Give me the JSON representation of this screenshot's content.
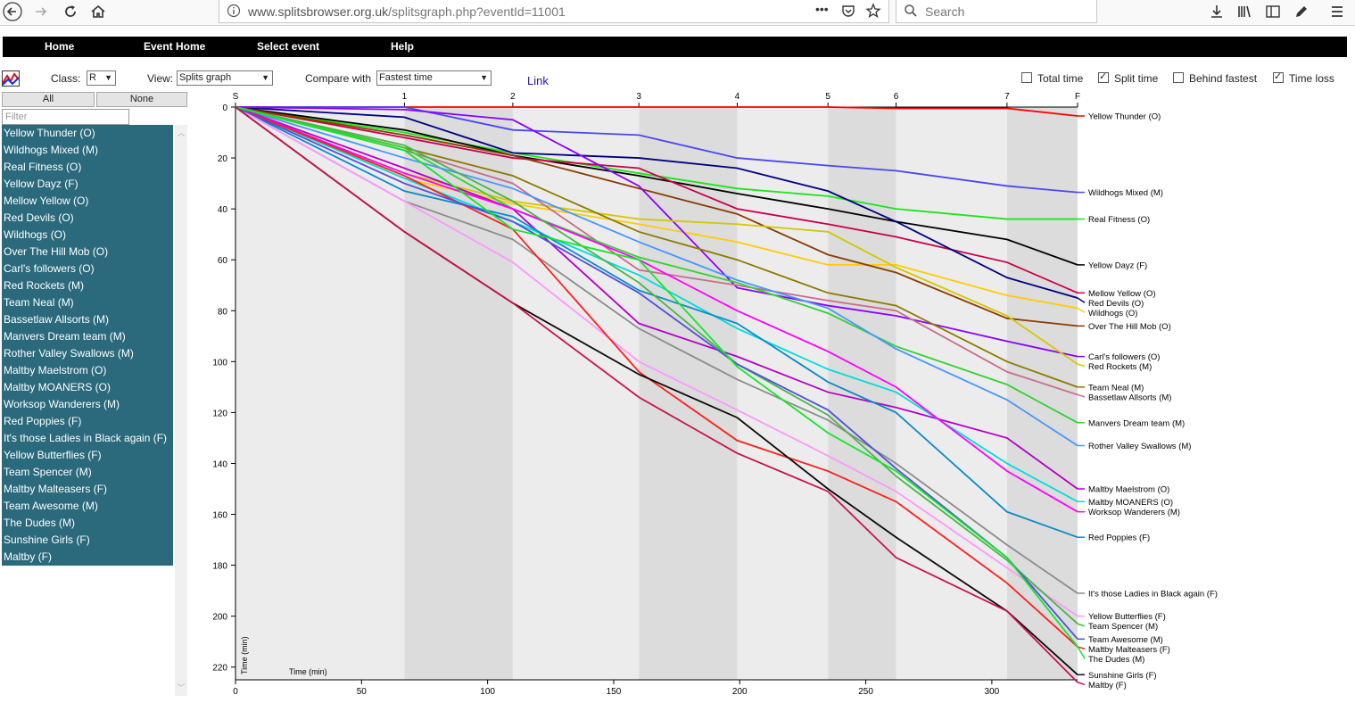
{
  "browser": {
    "url_main": "www.splitsbrowser.org.uk",
    "url_rest": "/splitsgraph.php?eventId=11001",
    "search_placeholder": "Search",
    "menu_dots": "•••"
  },
  "nav": {
    "home": "Home",
    "event_home": "Event Home",
    "select_event": "Select event",
    "help": "Help"
  },
  "toolbar": {
    "class_label": "Class:",
    "class_value": "R",
    "view_label": "View:",
    "view_value": "Splits graph",
    "compare_label": "Compare with",
    "compare_value": "Fastest time",
    "link_label": "Link",
    "total_time_label": "Total time",
    "total_time_checked": false,
    "split_time_label": "Split time",
    "split_time_checked": true,
    "behind_fastest_label": "Behind fastest",
    "behind_fastest_checked": false,
    "time_loss_label": "Time loss",
    "time_loss_checked": true
  },
  "sidebar": {
    "all_label": "All",
    "none_label": "None",
    "filter_placeholder": "Filter",
    "teams": [
      "Yellow Thunder (O)",
      "Wildhogs Mixed (M)",
      "Real Fitness (O)",
      "Yellow Dayz (F)",
      "Mellow Yellow (O)",
      "Red Devils (O)",
      "Wildhogs (O)",
      "Over The Hill Mob (O)",
      "Carl's followers (O)",
      "Red Rockets (M)",
      "Team Neal (M)",
      "Bassetlaw Allsorts (M)",
      "Manvers Dream team (M)",
      "Rother Valley Swallows (M)",
      "Maltby Maelstrom (O)",
      "Maltby MOANERS (O)",
      "Worksop Wanderers (M)",
      "Red Poppies (F)",
      "It's those Ladies in Black again (F)",
      "Yellow Butterflies (F)",
      "Team Spencer (M)",
      "Maltby Malteasers (F)",
      "Team Awesome (M)",
      "The Dudes (M)",
      "Sunshine Girls (F)",
      "Maltby (F)"
    ]
  },
  "chart_data": {
    "type": "line",
    "xlabel": "Time (min)",
    "ylabel": "Time (min)",
    "xlim": [
      0,
      334
    ],
    "ylim": [
      0,
      225
    ],
    "y_inverted": true,
    "x_ticks": [
      0,
      50,
      100,
      150,
      200,
      250,
      300
    ],
    "y_ticks": [
      0,
      20,
      40,
      60,
      80,
      100,
      120,
      140,
      160,
      180,
      200,
      220
    ],
    "controls": [
      {
        "label": "S",
        "x": 0
      },
      {
        "label": "1",
        "x": 67
      },
      {
        "label": "2",
        "x": 110
      },
      {
        "label": "3",
        "x": 160
      },
      {
        "label": "4",
        "x": 199
      },
      {
        "label": "5",
        "x": 235
      },
      {
        "label": "6",
        "x": 262
      },
      {
        "label": "7",
        "x": 306
      },
      {
        "label": "F",
        "x": 334
      }
    ],
    "series": [
      {
        "name": "Yellow Thunder (O)",
        "color": "#ff0000",
        "values": [
          0,
          0,
          0,
          0,
          0,
          0,
          0.5,
          0.5,
          3.5
        ]
      },
      {
        "name": "Wildhogs Mixed (M)",
        "color": "#4848ee",
        "values": [
          0,
          0,
          9,
          11,
          20,
          23,
          25,
          31,
          33.5
        ]
      },
      {
        "name": "Real Fitness (O)",
        "color": "#19e619",
        "values": [
          0,
          10,
          18,
          26,
          32,
          35,
          40,
          44,
          44
        ]
      },
      {
        "name": "Yellow Dayz (F)",
        "color": "#000000",
        "values": [
          0,
          9,
          19,
          27,
          34,
          40,
          45,
          52,
          62
        ]
      },
      {
        "name": "Mellow Yellow (O)",
        "color": "#c8004b",
        "values": [
          0,
          12,
          20,
          24,
          40,
          46,
          51,
          61,
          73
        ]
      },
      {
        "name": "Red Devils (O)",
        "color": "#000080",
        "values": [
          0,
          4,
          18,
          20,
          24,
          33,
          45,
          67,
          75
        ]
      },
      {
        "name": "Wildhogs (O)",
        "color": "#ffcc00",
        "values": [
          0,
          28,
          38,
          46,
          53,
          62,
          62,
          74,
          79
        ]
      },
      {
        "name": "Over The Hill Mob (O)",
        "color": "#8b3c00",
        "values": [
          0,
          11,
          19,
          32,
          42,
          58,
          65,
          83,
          86
        ]
      },
      {
        "name": "Carl's followers (O)",
        "color": "#8c00ff",
        "values": [
          0,
          1,
          5,
          31,
          71,
          78,
          82,
          92,
          98
        ]
      },
      {
        "name": "Red Rockets (M)",
        "color": "#d2c800",
        "values": [
          0,
          26,
          37,
          44,
          46,
          49,
          63,
          82,
          101
        ]
      },
      {
        "name": "Team Neal (M)",
        "color": "#8b7b00",
        "values": [
          0,
          16,
          27,
          49,
          60,
          73,
          78,
          100,
          110
        ]
      },
      {
        "name": "Bassetlaw Allsorts (M)",
        "color": "#c86c8c",
        "values": [
          0,
          17,
          30,
          64,
          70,
          76,
          80,
          104,
          113
        ]
      },
      {
        "name": "Manvers Dream team (M)",
        "color": "#32d232",
        "values": [
          0,
          16,
          40,
          59,
          69,
          81,
          94,
          109,
          124
        ]
      },
      {
        "name": "Rother Valley Swallows (M)",
        "color": "#4696ff",
        "values": [
          0,
          20,
          32,
          53,
          68,
          79,
          95,
          115,
          133
        ]
      },
      {
        "name": "Maltby Maelstrom (O)",
        "color": "#b400c8",
        "values": [
          0,
          24,
          40,
          85,
          98,
          112,
          118,
          130,
          150
        ]
      },
      {
        "name": "Maltby MOANERS (O)",
        "color": "#00dcdc",
        "values": [
          0,
          28,
          45,
          66,
          87,
          103,
          112,
          140,
          155
        ]
      },
      {
        "name": "Worksop Wanderers (M)",
        "color": "#ff00ff",
        "values": [
          0,
          26,
          40,
          60,
          80,
          96,
          110,
          143,
          159
        ]
      },
      {
        "name": "Red Poppies (F)",
        "color": "#0a8ac8",
        "values": [
          0,
          33,
          43,
          72,
          85,
          108,
          120,
          159,
          169
        ]
      },
      {
        "name": "It's those Ladies in Black again (F)",
        "color": "#8c8c8c",
        "values": [
          0,
          37,
          52,
          87,
          107,
          123,
          140,
          172,
          191
        ]
      },
      {
        "name": "Yellow Butterflies (F)",
        "color": "#ff96ff",
        "values": [
          0,
          37,
          61,
          100,
          119,
          137,
          151,
          181,
          200
        ]
      },
      {
        "name": "Team Spencer (M)",
        "color": "#4cb44c",
        "values": [
          0,
          15,
          37,
          69,
          101,
          121,
          145,
          178,
          203
        ]
      },
      {
        "name": "Maltby Malteasers (F)",
        "color": "#ff1e1e",
        "values": [
          0,
          27,
          48,
          104,
          131,
          143,
          155,
          187,
          212
        ]
      },
      {
        "name": "Team Awesome (M)",
        "color": "#5050dc",
        "values": [
          0,
          30,
          45,
          73,
          101,
          119,
          142,
          177,
          209
        ]
      },
      {
        "name": "The Dudes (M)",
        "color": "#14e628",
        "values": [
          0,
          17,
          48,
          60,
          102,
          128,
          143,
          177,
          212
        ]
      },
      {
        "name": "Sunshine Girls (F)",
        "color": "#0a0a0a",
        "values": [
          0,
          49,
          77,
          105,
          122,
          150,
          169,
          198,
          223
        ]
      },
      {
        "name": "Maltby (F)",
        "color": "#c8144b",
        "values": [
          0,
          49,
          77,
          114,
          136,
          151,
          177,
          198,
          226
        ]
      }
    ]
  }
}
